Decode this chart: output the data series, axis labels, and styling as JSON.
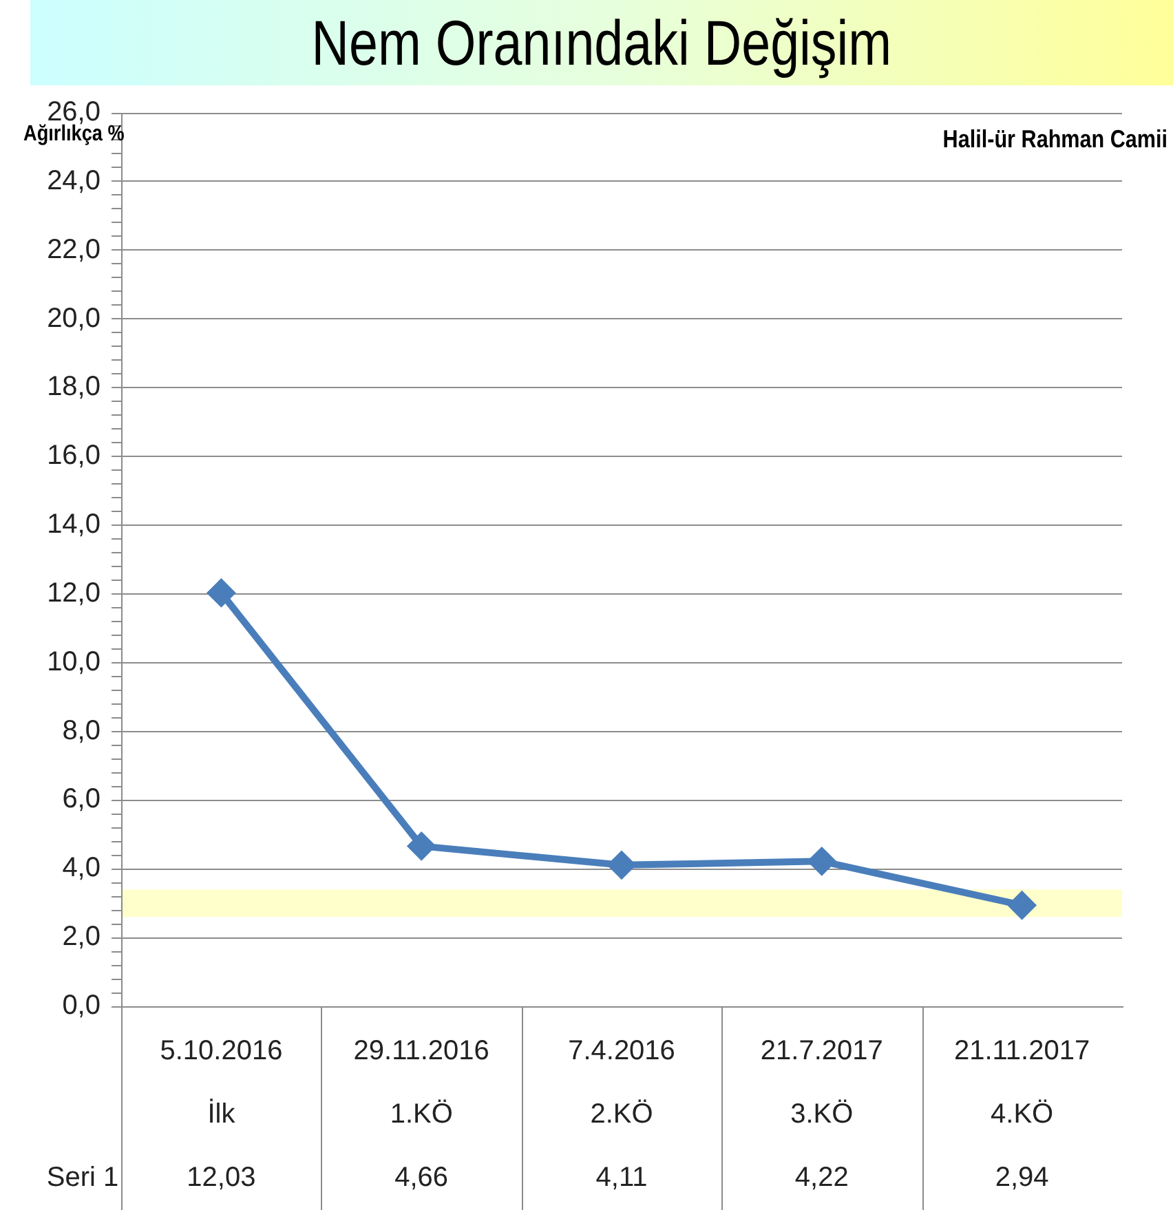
{
  "chart_data": {
    "type": "line",
    "title": "Nem Oranındaki Değişim",
    "ylabel": "Ağırlıkça %",
    "annotations": [
      "Halil-ür Rahman Camii"
    ],
    "categories": [
      "5.10.2016\nİlk",
      "29.11.2016\n1.KÖ",
      "7.4.2016\n2.KÖ",
      "21.7.2017\n3.KÖ",
      "21.11.2017\n4.KÖ"
    ],
    "series": [
      {
        "name": "Seri 1",
        "color": "#4a7ebb",
        "values": [
          12.03,
          4.66,
          4.11,
          4.22,
          2.94
        ],
        "value_labels": [
          "12,03",
          "4,66",
          "4,11",
          "4,22",
          "2,94"
        ]
      }
    ],
    "ylim": [
      0,
      26
    ],
    "yticks": [
      {
        "value": 0,
        "label": "0,0"
      },
      {
        "value": 0.4,
        "label": null
      },
      {
        "value": 0.8,
        "label": null
      },
      {
        "value": 1.2,
        "label": null
      },
      {
        "value": 1.6,
        "label": null
      },
      {
        "value": 2,
        "label": "2,0"
      },
      {
        "value": 2.4,
        "label": null
      },
      {
        "value": 2.8,
        "label": null
      },
      {
        "value": 3.2,
        "label": null
      },
      {
        "value": 3.6,
        "label": null
      },
      {
        "value": 4,
        "label": "4,0"
      },
      {
        "value": 4.4,
        "label": null
      },
      {
        "value": 4.8,
        "label": null
      },
      {
        "value": 5.2,
        "label": null
      },
      {
        "value": 5.6,
        "label": null
      },
      {
        "value": 6,
        "label": "6,0"
      },
      {
        "value": 6.4,
        "label": null
      },
      {
        "value": 6.8,
        "label": null
      },
      {
        "value": 7.2,
        "label": null
      },
      {
        "value": 7.6,
        "label": null
      },
      {
        "value": 8,
        "label": "8,0"
      },
      {
        "value": 8.4,
        "label": null
      },
      {
        "value": 8.8,
        "label": null
      },
      {
        "value": 9.2,
        "label": null
      },
      {
        "value": 9.6,
        "label": null
      },
      {
        "value": 10,
        "label": "10,0"
      },
      {
        "value": 10.4,
        "label": null
      },
      {
        "value": 10.8,
        "label": null
      },
      {
        "value": 11.2,
        "label": null
      },
      {
        "value": 11.6,
        "label": null
      },
      {
        "value": 12,
        "label": "12,0"
      },
      {
        "value": 12.4,
        "label": null
      },
      {
        "value": 12.8,
        "label": null
      },
      {
        "value": 13.2,
        "label": null
      },
      {
        "value": 13.6,
        "label": null
      },
      {
        "value": 14,
        "label": "14,0"
      },
      {
        "value": 14.4,
        "label": null
      },
      {
        "value": 14.8,
        "label": null
      },
      {
        "value": 15.2,
        "label": null
      },
      {
        "value": 15.6,
        "label": null
      },
      {
        "value": 16,
        "label": "16,0"
      },
      {
        "value": 16.4,
        "label": null
      },
      {
        "value": 16.8,
        "label": null
      },
      {
        "value": 17.2,
        "label": null
      },
      {
        "value": 17.6,
        "label": null
      },
      {
        "value": 18,
        "label": "18,0"
      },
      {
        "value": 18.4,
        "label": null
      },
      {
        "value": 18.8,
        "label": null
      },
      {
        "value": 19.2,
        "label": null
      },
      {
        "value": 19.6,
        "label": null
      },
      {
        "value": 20,
        "label": "20,0"
      },
      {
        "value": 20.4,
        "label": null
      },
      {
        "value": 20.8,
        "label": null
      },
      {
        "value": 21.2,
        "label": null
      },
      {
        "value": 21.6,
        "label": null
      },
      {
        "value": 22,
        "label": "22,0"
      },
      {
        "value": 22.4,
        "label": null
      },
      {
        "value": 22.8,
        "label": null
      },
      {
        "value": 23.2,
        "label": null
      },
      {
        "value": 23.6,
        "label": null
      },
      {
        "value": 24,
        "label": "24,0"
      },
      {
        "value": 24.4,
        "label": null
      },
      {
        "value": 24.8,
        "label": null
      },
      {
        "value": 25.2,
        "label": null
      },
      {
        "value": 25.6,
        "label": null
      },
      {
        "value": 26,
        "label": "26,0"
      }
    ],
    "bands": [
      {
        "axis": "y",
        "from": 2.6,
        "to": 3.4,
        "color": "#ffffcc"
      }
    ],
    "grid": "y",
    "legend": false,
    "marker": "diamond",
    "line_style": "solid"
  }
}
